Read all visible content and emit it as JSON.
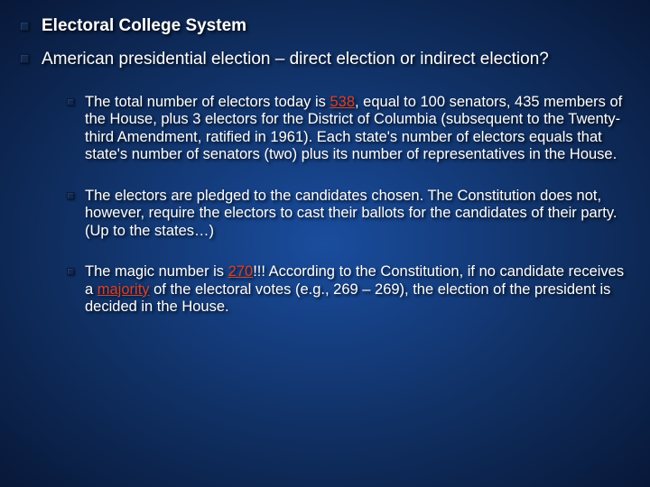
{
  "slide": {
    "background_gradient": [
      "#1a4d9e",
      "#0f2d5e",
      "#081838"
    ],
    "text_color": "#ffffff",
    "highlight_color": "#d84028",
    "bullet_color": "#102850",
    "title_fontsize": 19,
    "body_fontsize": 16.5,
    "heading1": "Electoral College System",
    "heading2": "American presidential election – direct election or indirect election?",
    "items": [
      {
        "pre": "The total number of electors today is ",
        "hl1": "538",
        "post": ", equal to 100 senators, 435 members of the House, plus 3 electors for the District of Columbia (subsequent to the Twenty-third Amendment, ratified in 1961). Each state's number of electors equals that state's number of senators (two) plus its number of representatives in the House."
      },
      {
        "full": "The electors are pledged to the candidates chosen. The Constitution does not, however, require the electors to cast their ballots for the candidates of their party. (Up to the states…)"
      },
      {
        "pre": "The magic number is ",
        "hl1": "270",
        "mid1": "!!!  According to the Constitution, if no candidate receives a ",
        "hl2": "majority",
        "post": " of the electoral votes (e.g., 269 – 269), the election of the president is decided in the House."
      }
    ]
  }
}
